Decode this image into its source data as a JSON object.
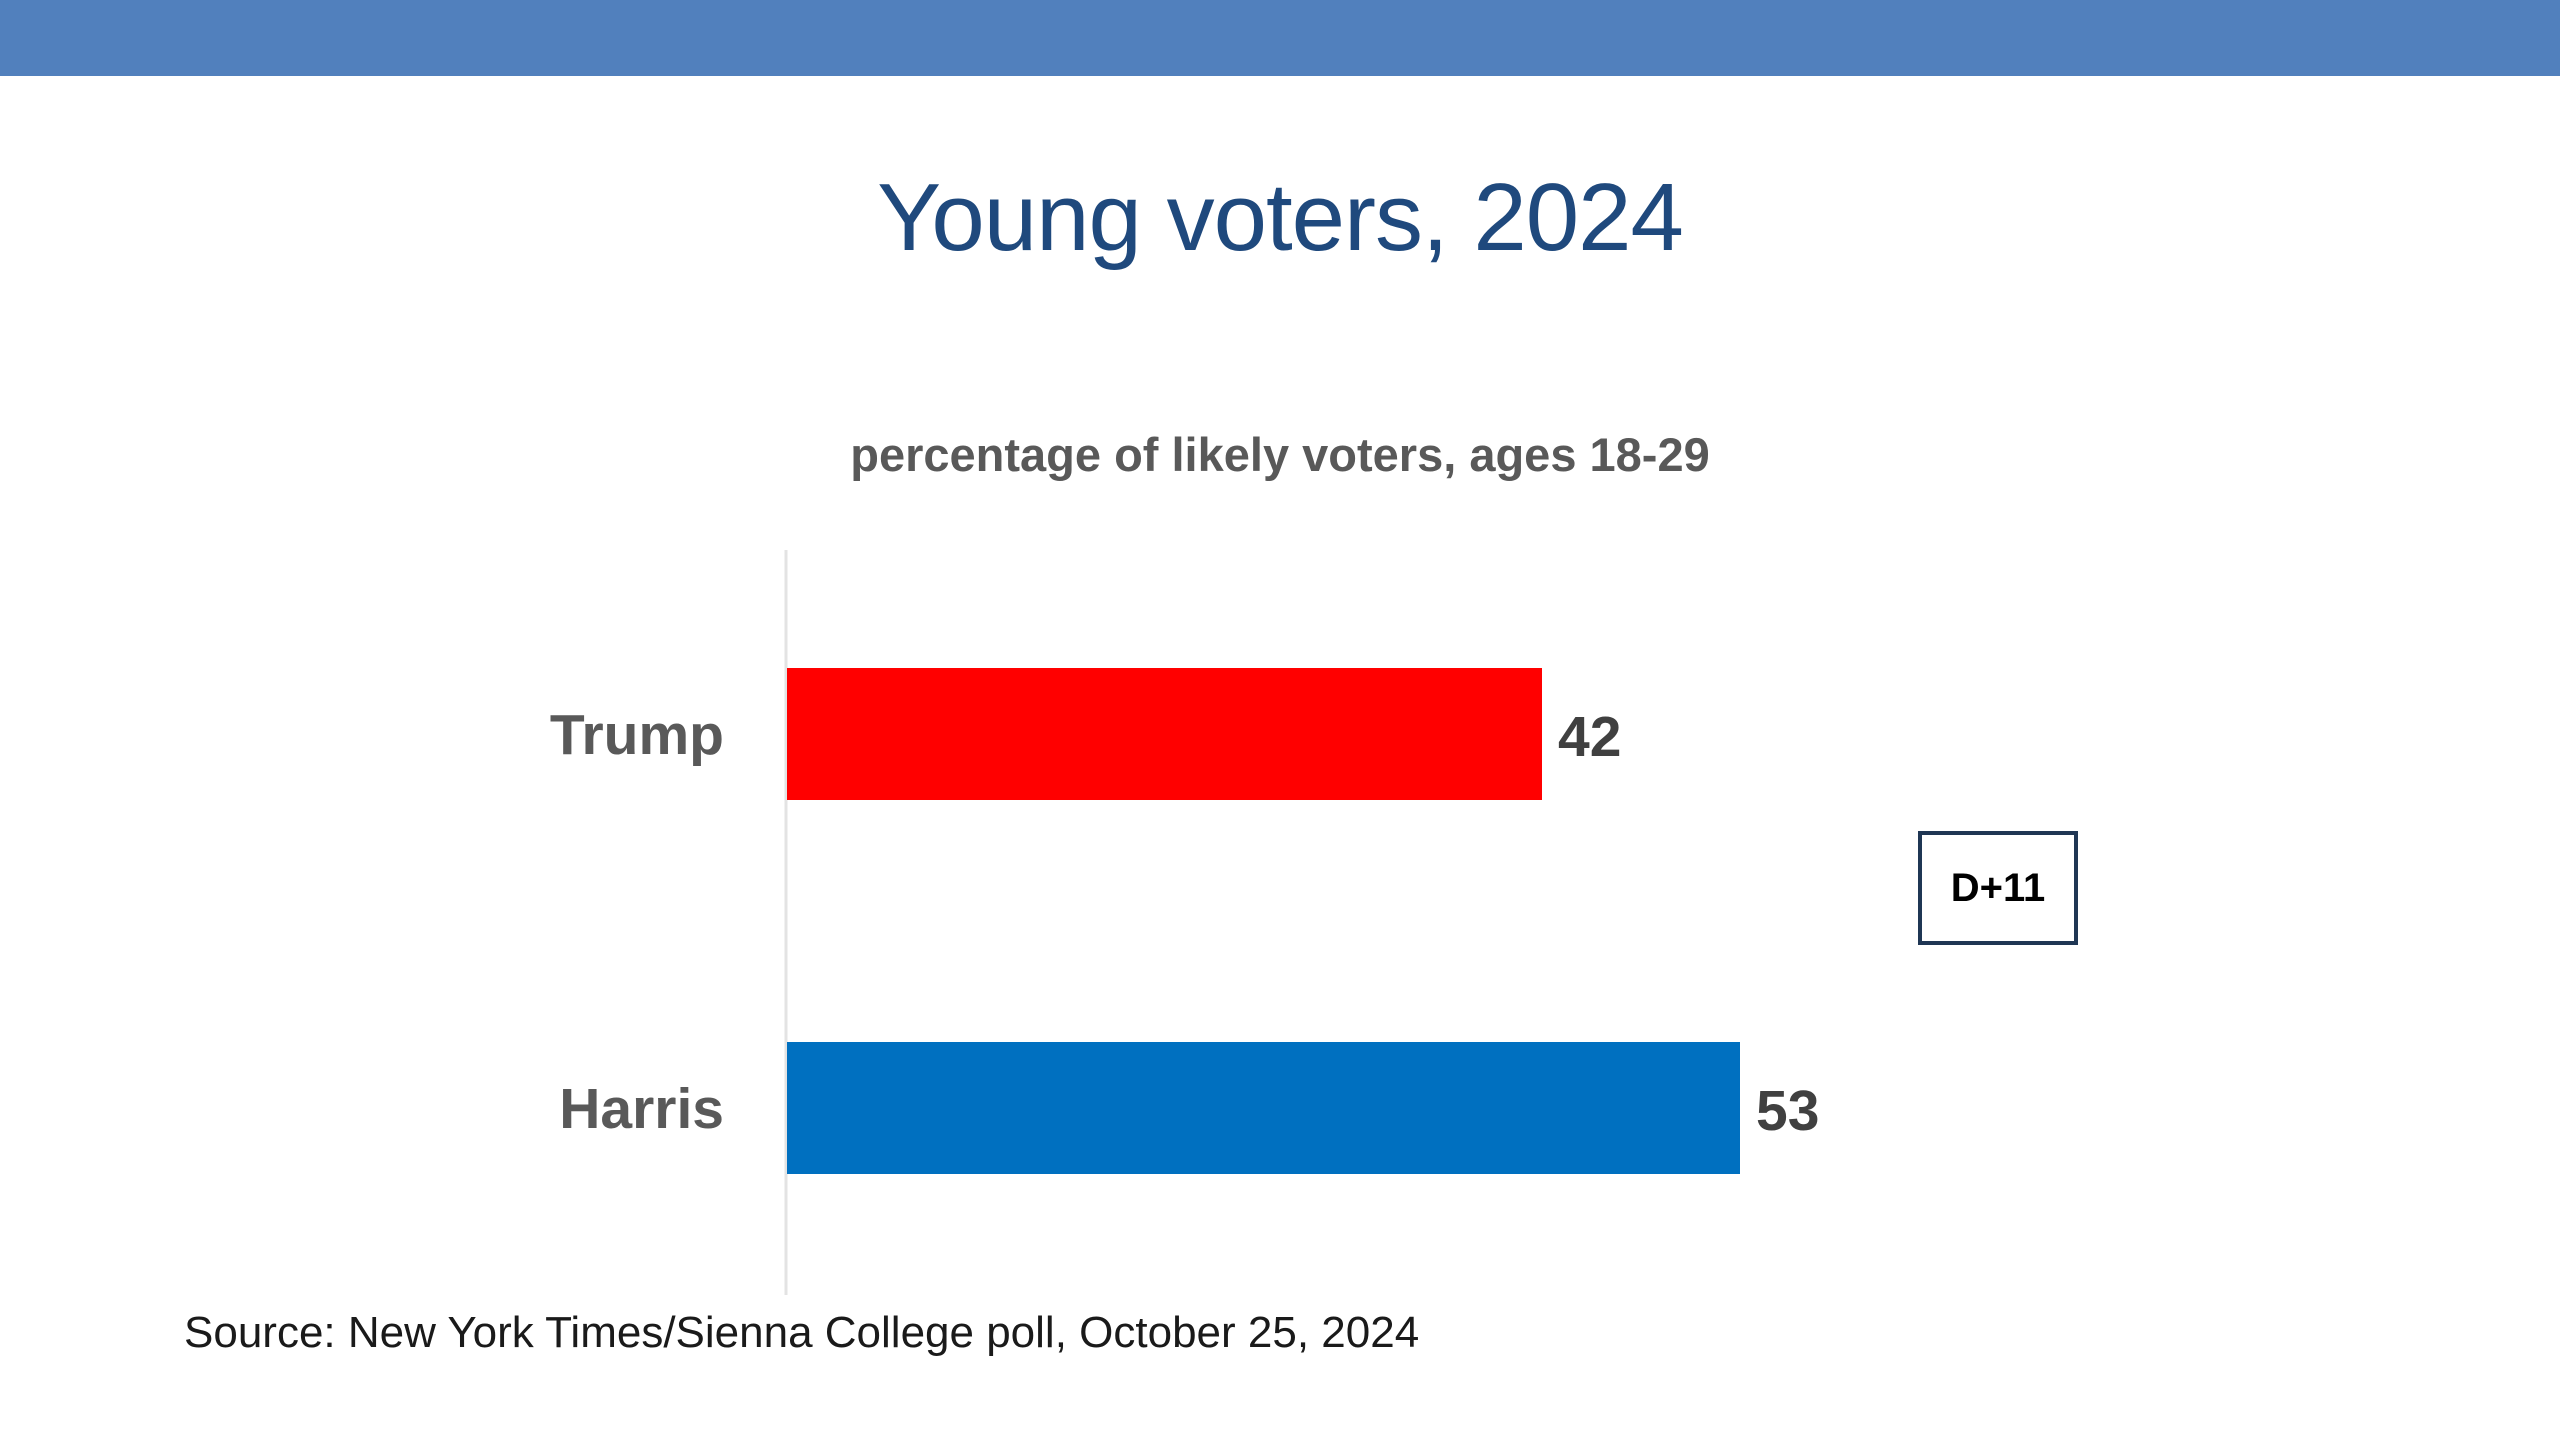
{
  "colors": {
    "header_bar": "#5180bd",
    "title": "#1f497d",
    "trump_bar": "#ff0000",
    "harris_bar": "#0070c0"
  },
  "chart_data": {
    "type": "bar",
    "orientation": "horizontal",
    "title": "Young voters, 2024",
    "subtitle": "percentage of likely voters, ages 18-29",
    "categories": [
      "Trump",
      "Harris"
    ],
    "values": [
      42,
      53
    ],
    "value_labels": [
      "42",
      "53"
    ],
    "colors": [
      "#ff0000",
      "#0070c0"
    ],
    "xlim": [
      0,
      70
    ],
    "grid": false,
    "legend": "none",
    "annotation": "D+11"
  },
  "source": "Source: New York Times/Sienna College poll, October 25, 2024"
}
